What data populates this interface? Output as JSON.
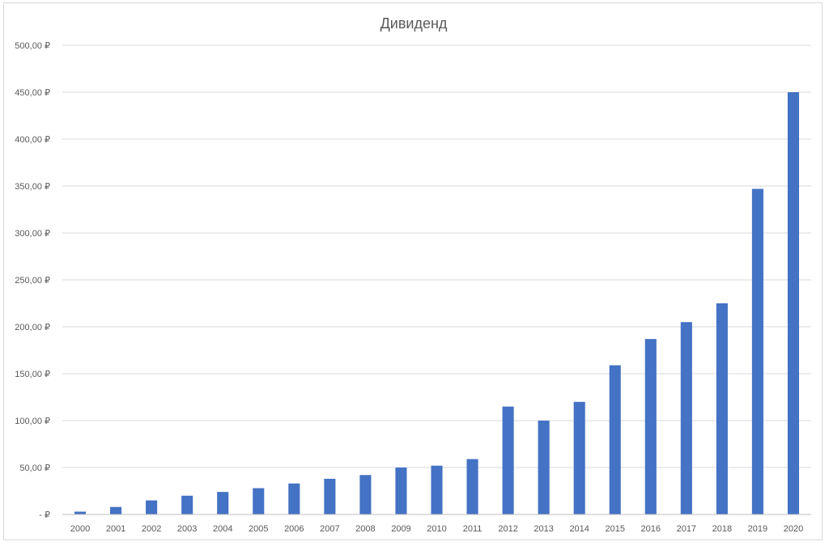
{
  "chart_data": {
    "type": "bar",
    "title": "Дивиденд",
    "xlabel": "",
    "ylabel": "",
    "ylim": [
      0,
      500
    ],
    "yticks": [
      0,
      50,
      100,
      150,
      200,
      250,
      300,
      350,
      400,
      450,
      500
    ],
    "ytick_labels": [
      "-   ₽",
      "50,00 ₽",
      "100,00 ₽",
      "150,00 ₽",
      "200,00 ₽",
      "250,00 ₽",
      "300,00 ₽",
      "350,00 ₽",
      "400,00 ₽",
      "450,00 ₽",
      "500,00 ₽"
    ],
    "categories": [
      "2000",
      "2001",
      "2002",
      "2003",
      "2004",
      "2005",
      "2006",
      "2007",
      "2008",
      "2009",
      "2010",
      "2011",
      "2012",
      "2013",
      "2014",
      "2015",
      "2016",
      "2017",
      "2018",
      "2019",
      "2020"
    ],
    "values": [
      3,
      8,
      15,
      20,
      24,
      28,
      33,
      38,
      42,
      50,
      52,
      59,
      115,
      100,
      120,
      159,
      187,
      205,
      225,
      347,
      450
    ],
    "grid": true,
    "legend": "none",
    "bar_color": "#4472c4"
  }
}
